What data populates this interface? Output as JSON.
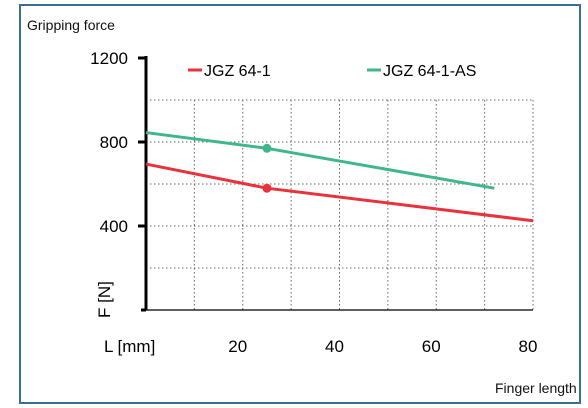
{
  "chart_data": {
    "type": "line",
    "title": "Gripping force",
    "xlabel": "Finger length",
    "ylabel": "F [N]",
    "x_unit_label": "L [mm]",
    "xlim": [
      0,
      80
    ],
    "ylim": [
      0,
      1200
    ],
    "x_ticks": [
      "20",
      "40",
      "60",
      "80"
    ],
    "y_ticks": [
      "400",
      "800",
      "1200"
    ],
    "grid": true,
    "legend_position": "top",
    "series": [
      {
        "name": "JGZ  64-1",
        "color": "#e8323c",
        "x": [
          0,
          25,
          80
        ],
        "y": [
          695,
          580,
          425
        ],
        "marker": {
          "x": 25,
          "y": 580
        }
      },
      {
        "name": "JGZ  64-1-AS",
        "color": "#3fb68e",
        "x": [
          0,
          25,
          72
        ],
        "y": [
          845,
          770,
          580
        ],
        "marker": {
          "x": 25,
          "y": 770
        }
      }
    ]
  }
}
